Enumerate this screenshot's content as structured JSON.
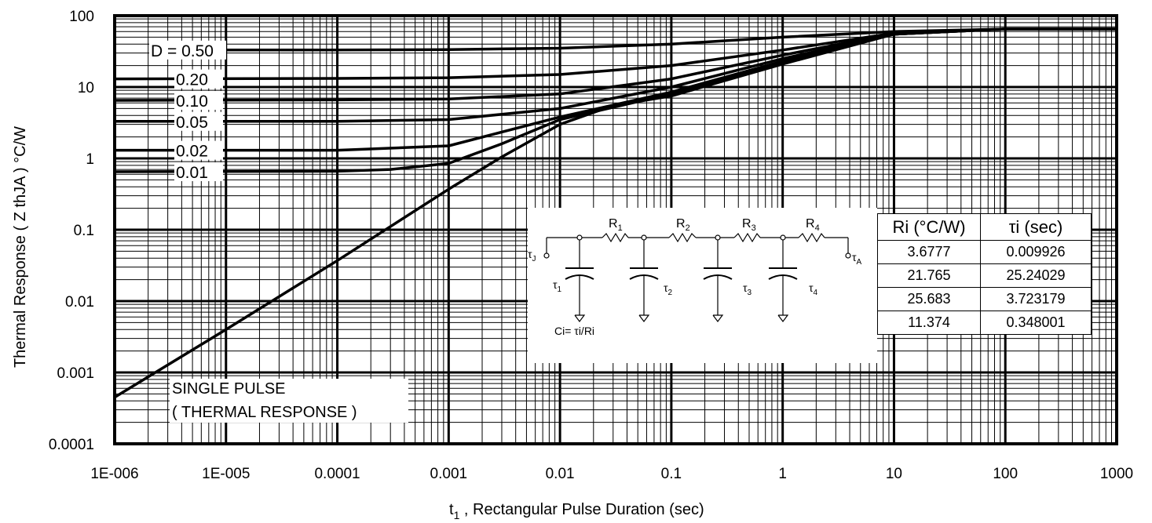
{
  "chart_data": {
    "type": "line",
    "title": "",
    "xlabel_prefix": "t",
    "xlabel_sub": "1",
    "xlabel_rest": " , Rectangular Pulse Duration (sec)",
    "ylabel": "Thermal Response ( Z  thJA ) °C/W",
    "xscale": "log",
    "yscale": "log",
    "xlim": [
      1e-06,
      1000
    ],
    "ylim": [
      0.0001,
      100
    ],
    "grid": true,
    "xtick_labels": [
      "1E-006",
      "1E-005",
      "0.0001",
      "0.001",
      "0.01",
      "0.1",
      "1",
      "10",
      "100",
      "1000"
    ],
    "ytick_labels": [
      "0.0001",
      "0.001",
      "0.01",
      "0.1",
      "1",
      "10",
      "100"
    ],
    "series": [
      {
        "name": "D = 0.50",
        "x": [
          4e-06,
          0.0001,
          0.001,
          0.01,
          0.1,
          1,
          10,
          100,
          1000
        ],
        "y": [
          33,
          33,
          33.5,
          35,
          40,
          50,
          60,
          65,
          65
        ]
      },
      {
        "name": "0.20",
        "x": [
          1e-06,
          0.0001,
          0.001,
          0.01,
          0.1,
          1,
          10,
          100,
          1000
        ],
        "y": [
          13,
          13.2,
          13.5,
          15,
          20,
          33,
          57,
          65,
          65
        ]
      },
      {
        "name": "0.10",
        "x": [
          1e-06,
          0.0001,
          0.001,
          0.01,
          0.1,
          1,
          10,
          100,
          1000
        ],
        "y": [
          6.5,
          6.6,
          6.8,
          8,
          13,
          28,
          56,
          65,
          65
        ]
      },
      {
        "name": "0.05",
        "x": [
          1e-06,
          0.0001,
          0.001,
          0.01,
          0.1,
          1,
          10,
          100,
          1000
        ],
        "y": [
          3.3,
          3.3,
          3.5,
          5,
          10,
          25,
          55,
          65,
          65
        ]
      },
      {
        "name": "0.02",
        "x": [
          1e-06,
          0.0001,
          0.001,
          0.01,
          0.1,
          1,
          10,
          100,
          1000
        ],
        "y": [
          1.3,
          1.3,
          1.5,
          3.8,
          8.5,
          23,
          55,
          65,
          65
        ]
      },
      {
        "name": "0.01",
        "x": [
          1e-06,
          0.0001,
          0.0003,
          0.001,
          0.003,
          0.01,
          0.1,
          1,
          10,
          100,
          1000
        ],
        "y": [
          0.65,
          0.66,
          0.7,
          0.85,
          1.6,
          3.5,
          8,
          22,
          55,
          65,
          65
        ]
      },
      {
        "name": "SINGLE PULSE",
        "x": [
          1e-06,
          1e-05,
          0.0001,
          0.001,
          0.003,
          0.01,
          0.03,
          0.1,
          1,
          10,
          100,
          1000
        ],
        "y": [
          0.00045,
          0.004,
          0.037,
          0.37,
          1.05,
          3,
          5.5,
          7.5,
          21,
          55,
          65,
          65
        ]
      }
    ],
    "annotations": {
      "single_pulse_line1": "SINGLE PULSE",
      "single_pulse_line2": "( THERMAL RESPONSE )"
    }
  },
  "circuit": {
    "r1": "R",
    "r1_sub": "1",
    "r2": "R",
    "r2_sub": "2",
    "r3": "R",
    "r3_sub": "3",
    "r4": "R",
    "r4_sub": "4",
    "tauj": "τ",
    "tauj_sub": "J",
    "taua": "τ",
    "taua_sub": "A",
    "tau1": "τ",
    "tau1_sub": "1",
    "tau2": "τ",
    "tau2_sub": "2",
    "tau3": "τ",
    "tau3_sub": "3",
    "tau4": "τ",
    "tau4_sub": "4",
    "ci_label": "Ci= τi/Ri"
  },
  "table": {
    "col1_header": "Ri (°C/W)",
    "col2_header": "τi (sec)",
    "rows": [
      [
        "3.6777",
        "0.009926"
      ],
      [
        "21.765",
        "25.24029"
      ],
      [
        "25.683",
        "3.723179"
      ],
      [
        "11.374",
        "0.348001"
      ]
    ]
  }
}
